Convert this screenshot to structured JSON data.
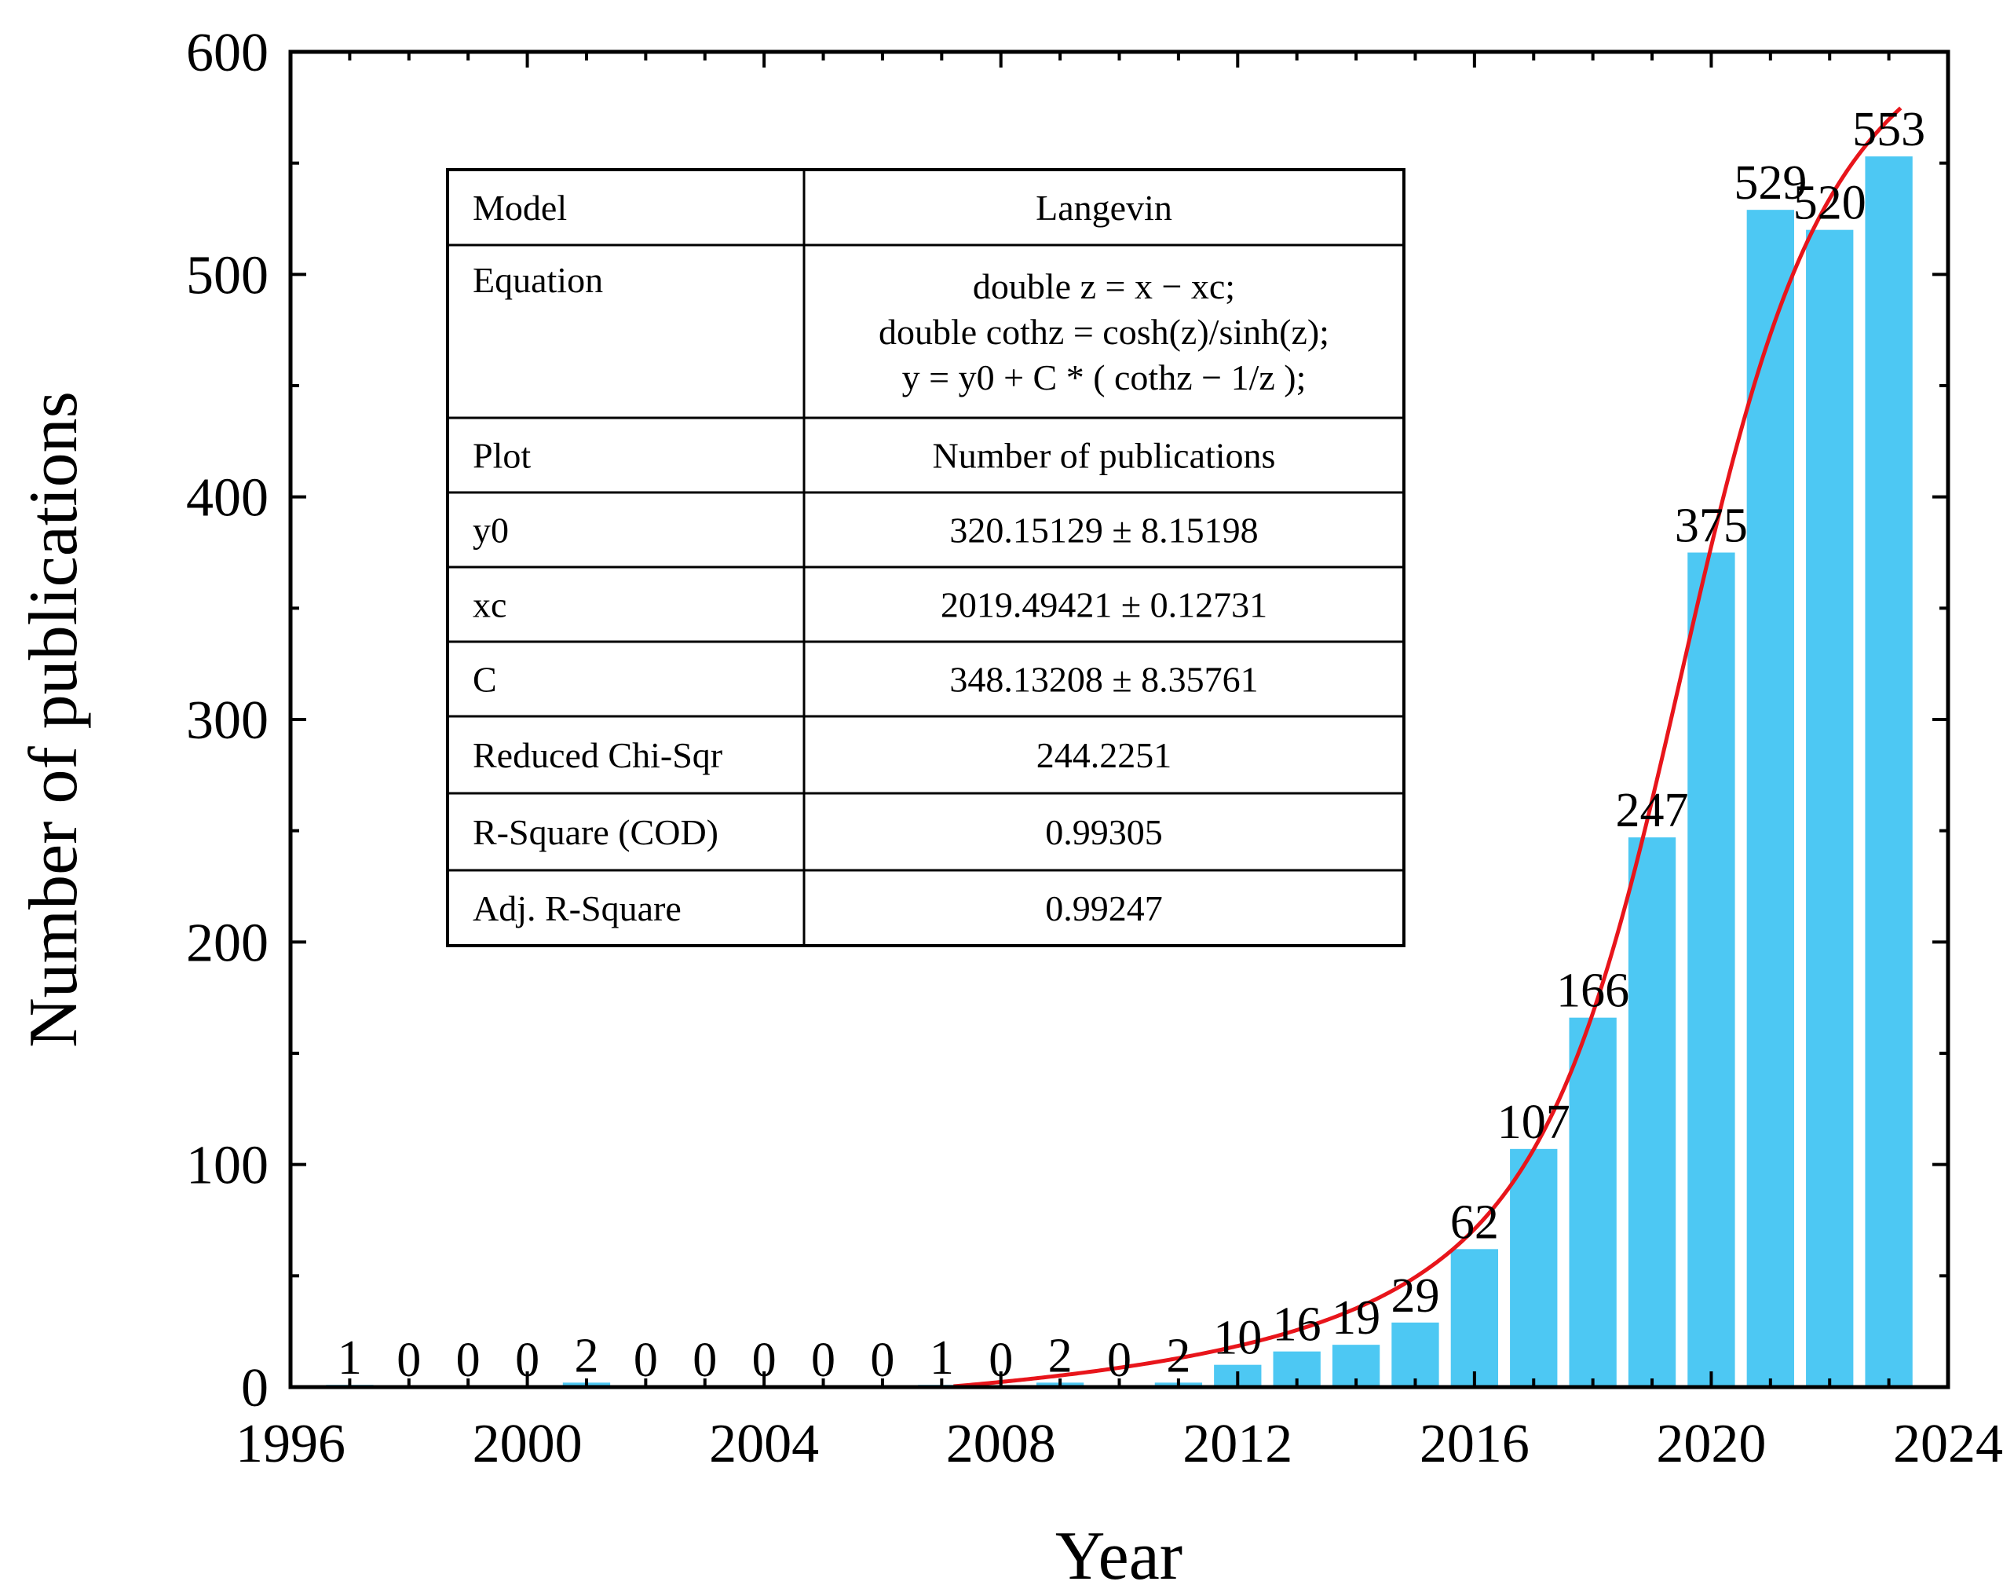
{
  "chart_data": {
    "type": "bar",
    "title": "",
    "xlabel": "Year",
    "ylabel": "Number of publications",
    "xlim": [
      1996,
      2024
    ],
    "ylim": [
      0,
      600
    ],
    "xticks": [
      1996,
      2000,
      2004,
      2008,
      2012,
      2016,
      2020,
      2024
    ],
    "yticks": [
      0,
      100,
      200,
      300,
      400,
      500,
      600
    ],
    "grid": false,
    "bar_color": "#4DC8F3",
    "fit_color": "#E8151B",
    "categories": [
      1997,
      1998,
      1999,
      2000,
      2001,
      2002,
      2003,
      2004,
      2005,
      2006,
      2007,
      2008,
      2009,
      2010,
      2011,
      2012,
      2013,
      2014,
      2015,
      2016,
      2017,
      2018,
      2019,
      2020,
      2021,
      2022,
      2023
    ],
    "values": [
      1,
      0,
      0,
      0,
      2,
      0,
      0,
      0,
      0,
      0,
      1,
      0,
      2,
      0,
      2,
      10,
      16,
      19,
      29,
      62,
      107,
      166,
      247,
      375,
      529,
      520,
      553
    ],
    "fit": {
      "name": "Langevin",
      "y0": 320.15129,
      "xc": 2019.49421,
      "C": 348.13208,
      "x_start": 2007.2,
      "x_end": 2023.2
    }
  },
  "fit_table": {
    "rows": [
      {
        "label": "Model",
        "value": [
          "Langevin"
        ]
      },
      {
        "label": "Equation",
        "value": [
          "double z = x − xc;",
          "double cothz = cosh(z)/sinh(z);",
          "y = y0 + C * ( cothz − 1/z );"
        ]
      },
      {
        "label": "Plot",
        "value": [
          "Number of publications"
        ]
      },
      {
        "label": "y0",
        "value": [
          "320.15129 ± 8.15198"
        ]
      },
      {
        "label": "xc",
        "value": [
          "2019.49421 ± 0.12731"
        ]
      },
      {
        "label": "C",
        "value": [
          "348.13208 ± 8.35761"
        ]
      },
      {
        "label": "Reduced Chi-Sqr",
        "value": [
          "244.2251"
        ]
      },
      {
        "label": "R-Square (COD)",
        "value": [
          "0.99305"
        ]
      },
      {
        "label": "Adj. R-Square",
        "value": [
          "0.99247"
        ]
      }
    ]
  }
}
